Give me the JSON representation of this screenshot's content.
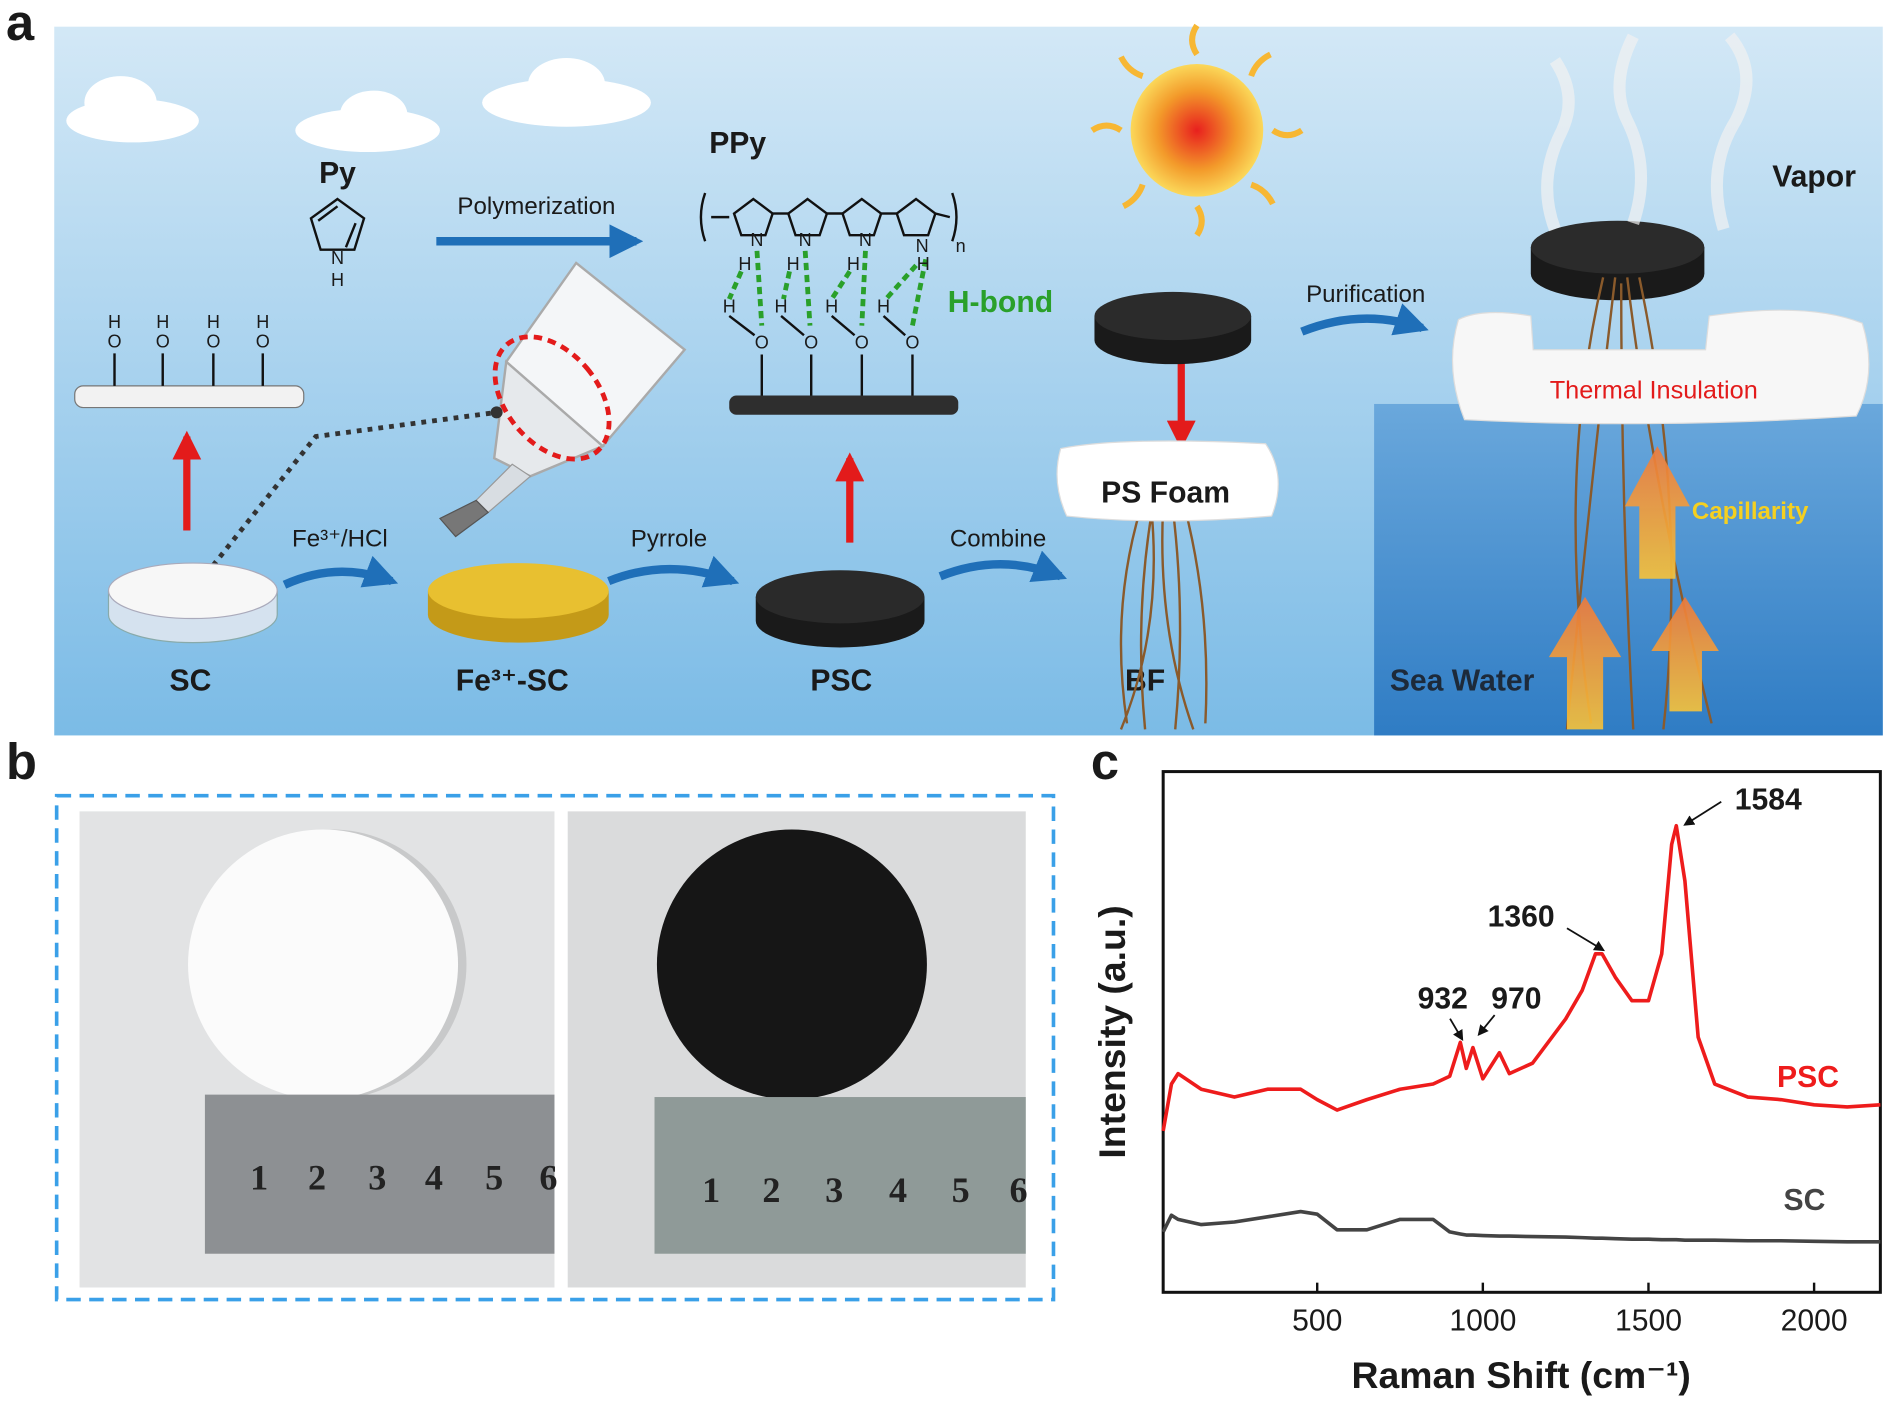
{
  "panel_a": {
    "label": "a",
    "py": "Py",
    "polymerization": "Polymerization",
    "ppy": "PPy",
    "n": "n",
    "h_bond": "H-bond",
    "atoms": {
      "H": "H",
      "O": "O",
      "N": "N"
    },
    "fe_hcl": "Fe³⁺/HCl",
    "pyrrole": "Pyrrole",
    "combine": "Combine",
    "purification": "Purification",
    "sc": "SC",
    "fe_sc": "Fe³⁺-SC",
    "psc": "PSC",
    "bf": "BF",
    "ps_foam": "PS Foam",
    "vapor": "Vapor",
    "thermal_insulation": "Thermal Insulation",
    "capillarity": "Capillarity",
    "sea_water": "Sea Water"
  },
  "panel_b": {
    "label": "b",
    "ruler_labels": [
      "1",
      "2",
      "3",
      "4",
      "5",
      "6"
    ]
  },
  "chart_data": {
    "type": "line",
    "panel_label": "c",
    "x_label": "Raman Shift (cm⁻¹)",
    "y_label": "Intensity (a.u.)",
    "x": [
      35,
      60,
      80,
      150,
      250,
      350,
      450,
      500,
      560,
      650,
      750,
      850,
      900,
      932,
      950,
      970,
      1000,
      1050,
      1080,
      1150,
      1250,
      1300,
      1340,
      1360,
      1400,
      1450,
      1500,
      1540,
      1570,
      1584,
      1610,
      1650,
      1700,
      1800,
      1900,
      2000,
      2100,
      2200
    ],
    "series": [
      {
        "name": "PSC",
        "color": "#ee1c1c",
        "values": [
          31,
          40,
          42,
          39,
          37.5,
          39,
          39,
          37,
          35,
          37,
          39,
          40,
          41.5,
          48,
          43,
          47,
          41,
          46,
          42,
          44,
          52.5,
          58,
          65,
          65,
          60.5,
          56,
          56,
          65,
          86,
          89.6,
          79,
          49,
          40,
          37.5,
          37,
          36,
          35.6,
          36
        ]
      },
      {
        "name": "SC",
        "color": "#444444",
        "values": [
          11.6,
          14.8,
          14,
          13,
          13.5,
          14.5,
          15.5,
          15,
          12,
          12,
          14,
          14,
          11.6,
          11.2,
          11,
          11,
          10.9,
          10.8,
          10.8,
          10.7,
          10.6,
          10.5,
          10.4,
          10.4,
          10.3,
          10.2,
          10.2,
          10.1,
          10.1,
          10.1,
          10,
          10,
          10,
          9.9,
          9.9,
          9.8,
          9.7,
          9.7
        ]
      }
    ],
    "annotations": [
      "932",
      "970",
      "1360",
      "1584"
    ],
    "xlim": [
      35,
      2200
    ],
    "ylim": [
      0,
      100
    ],
    "xticks": [
      500,
      1000,
      1500,
      2000
    ]
  }
}
